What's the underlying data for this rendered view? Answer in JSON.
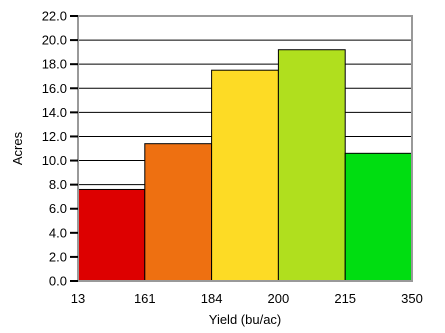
{
  "chart_data": {
    "type": "bar",
    "title": "",
    "xlabel": "Yield (bu/ac)",
    "ylabel": "Acres",
    "ylim": [
      0,
      22
    ],
    "y_ticks": [
      "0.0",
      "2.0",
      "4.0",
      "6.0",
      "8.0",
      "10.0",
      "12.0",
      "14.0",
      "16.0",
      "18.0",
      "20.0",
      "22.0"
    ],
    "x_edges": [
      "13",
      "161",
      "184",
      "200",
      "215",
      "350"
    ],
    "grid": true,
    "bars": [
      {
        "range": "13-161",
        "value": 7.6,
        "color": "#dd0000"
      },
      {
        "range": "161-184",
        "value": 11.4,
        "color": "#ee7011"
      },
      {
        "range": "184-200",
        "value": 17.5,
        "color": "#fddb25"
      },
      {
        "range": "200-215",
        "value": 19.2,
        "color": "#b0df1e"
      },
      {
        "range": "215-350",
        "value": 10.6,
        "color": "#00dd11"
      }
    ]
  }
}
